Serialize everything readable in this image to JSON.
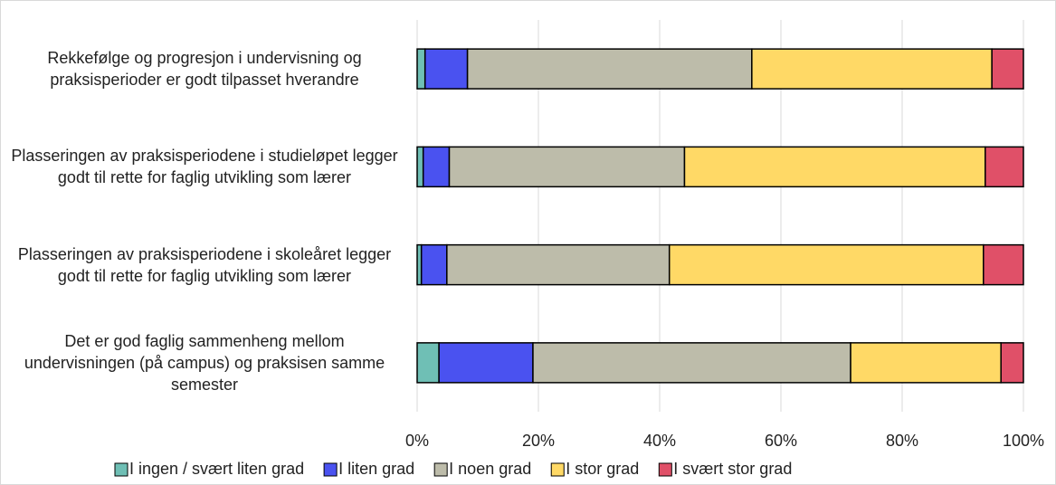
{
  "chart_data": {
    "type": "stacked-bar-horizontal",
    "categories": [
      "Rekkefølge og progresjon i undervisning og praksisperioder er godt tilpasset hverandre",
      "Plasseringen av praksisperiodene i studieløpet legger godt til rette for faglig utvikling som lærer",
      "Plasseringen av praksisperiodene i skoleåret legger godt til rette for faglig utvikling som lærer",
      "Det er god faglig sammenheng mellom undervisningen (på campus) og praksisen samme semester"
    ],
    "series": [
      {
        "name": "I ingen / svært liten grad",
        "color": "#6fbfb5",
        "values": [
          1.3,
          1.0,
          0.7,
          3.6
        ]
      },
      {
        "name": "I liten grad",
        "color": "#4a52f0",
        "values": [
          7.0,
          4.3,
          4.2,
          15.5
        ]
      },
      {
        "name": "I noen grad",
        "color": "#bdbcaa",
        "values": [
          46.9,
          38.8,
          36.7,
          52.4
        ]
      },
      {
        "name": "I stor grad",
        "color": "#ffd966",
        "values": [
          39.6,
          49.6,
          51.8,
          24.8
        ]
      },
      {
        "name": "I svært stor grad",
        "color": "#e05068",
        "values": [
          5.2,
          6.3,
          6.6,
          3.7
        ]
      }
    ],
    "xlim": [
      0,
      100
    ],
    "xticks": [
      {
        "value": 0,
        "label": "0%"
      },
      {
        "value": 20,
        "label": "20%"
      },
      {
        "value": 40,
        "label": "40%"
      },
      {
        "value": 60,
        "label": "60%"
      },
      {
        "value": 80,
        "label": "80%"
      },
      {
        "value": 100,
        "label": "100%"
      }
    ],
    "grid": true,
    "legend": "bottom"
  }
}
